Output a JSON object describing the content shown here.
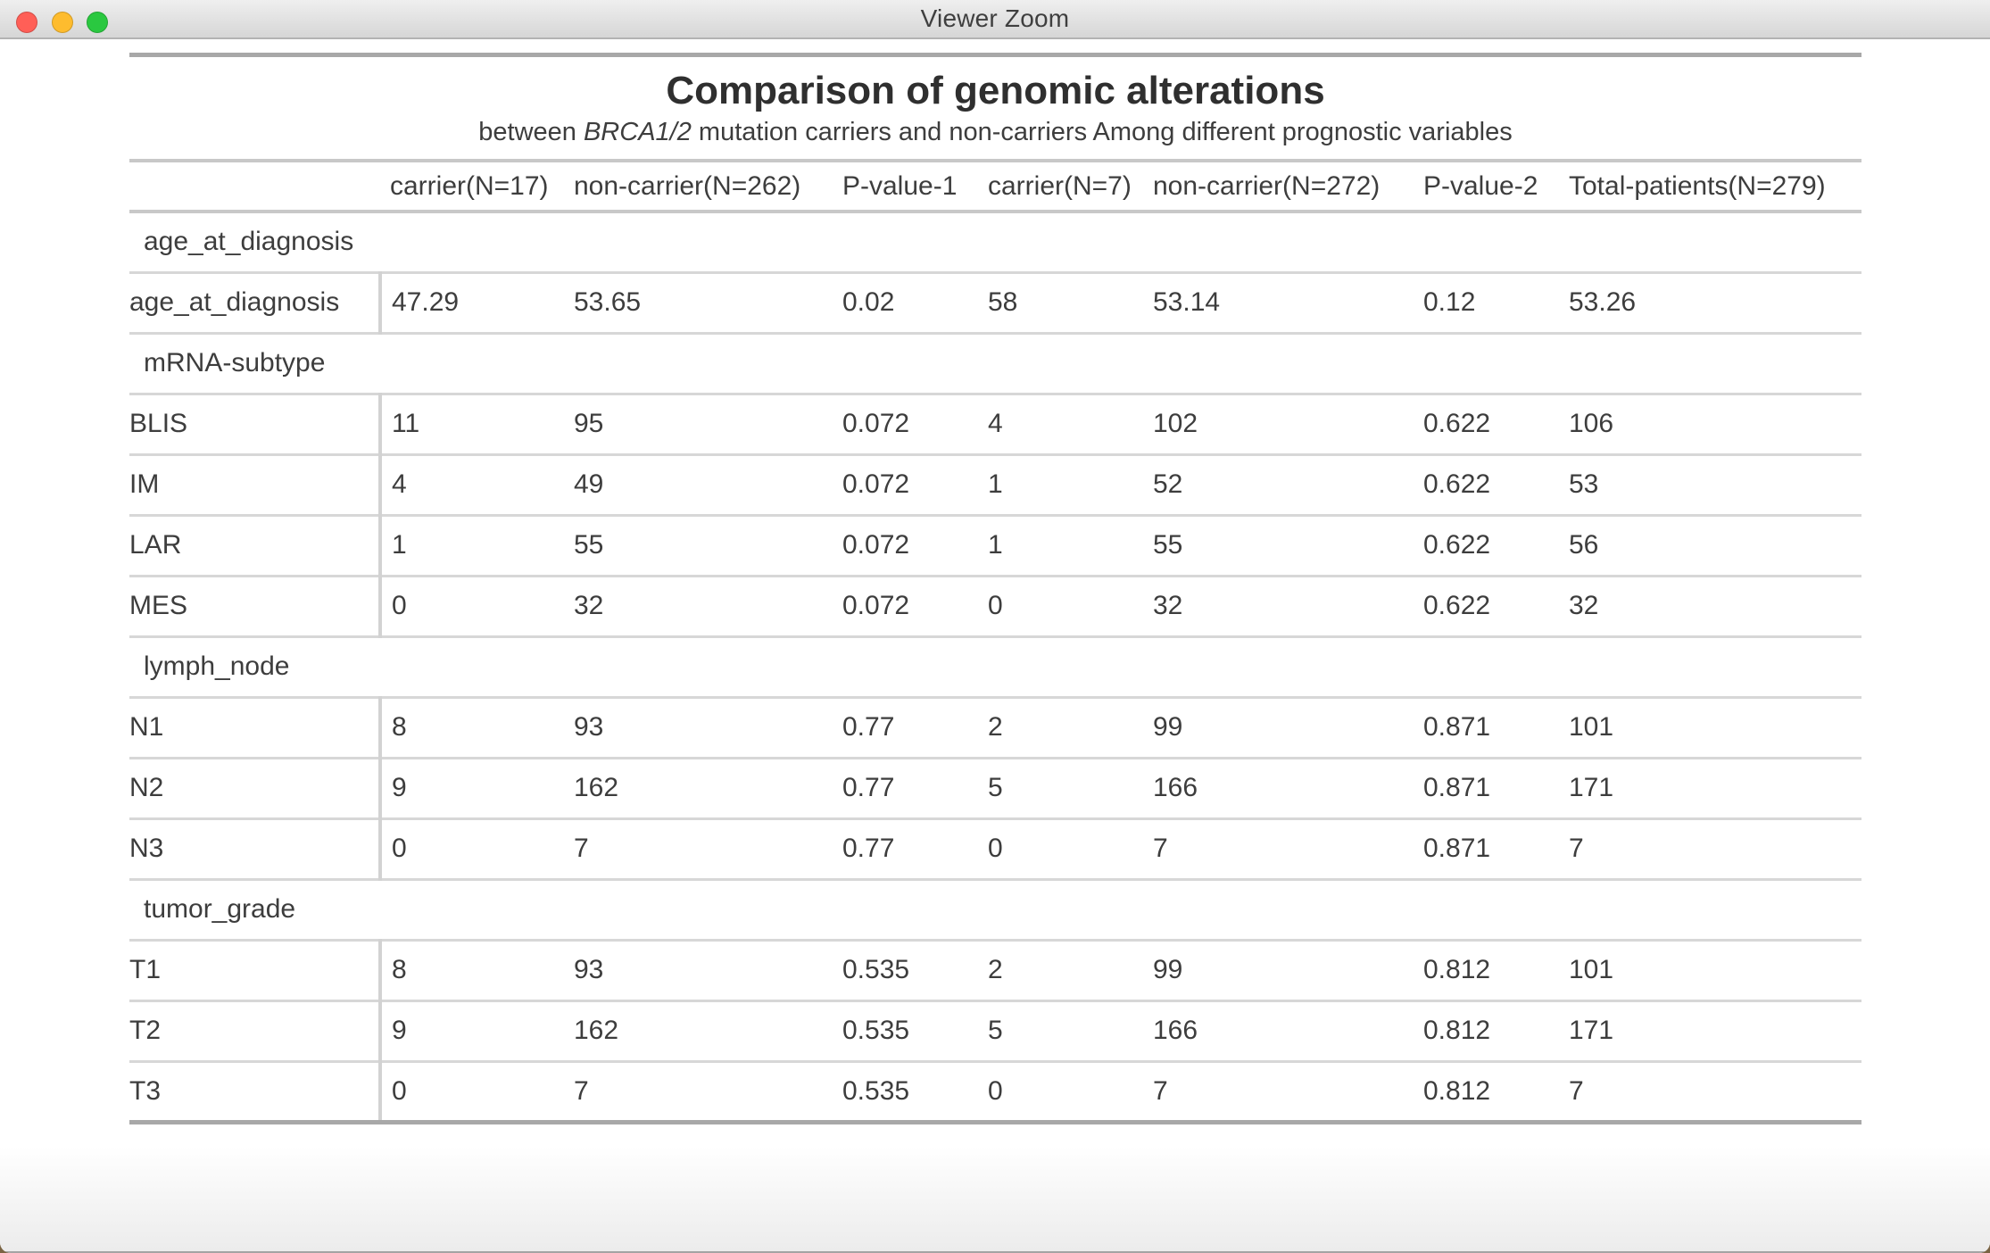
{
  "window": {
    "title": "Viewer Zoom",
    "traffic_lights": {
      "close_color": "#ff5f57",
      "minimize_color": "#febc2e",
      "zoom_color": "#2ac840"
    }
  },
  "table": {
    "title": "Comparison of genomic alterations",
    "subtitle": {
      "prefix": "between ",
      "italic": "BRCA1/2",
      "suffix": " mutation carriers and non-carriers Among different prognostic variables"
    },
    "columns": [
      "",
      "carrier(N=17)",
      "non-carrier(N=262)",
      "P-value-1",
      "carrier(N=7)",
      "non-carrier(N=272)",
      "P-value-2",
      "Total-patients(N=279)"
    ],
    "sections": [
      {
        "group": "age_at_diagnosis",
        "rows": [
          {
            "label": "age_at_diagnosis",
            "values": [
              "47.29",
              "53.65",
              "0.02",
              "58",
              "53.14",
              "0.12",
              "53.26"
            ]
          }
        ]
      },
      {
        "group": "mRNA-subtype",
        "rows": [
          {
            "label": "BLIS",
            "values": [
              "11",
              "95",
              "0.072",
              "4",
              "102",
              "0.622",
              "106"
            ]
          },
          {
            "label": "IM",
            "values": [
              "4",
              "49",
              "0.072",
              "1",
              "52",
              "0.622",
              "53"
            ]
          },
          {
            "label": "LAR",
            "values": [
              "1",
              "55",
              "0.072",
              "1",
              "55",
              "0.622",
              "56"
            ]
          },
          {
            "label": "MES",
            "values": [
              "0",
              "32",
              "0.072",
              "0",
              "32",
              "0.622",
              "32"
            ]
          }
        ]
      },
      {
        "group": "lymph_node",
        "rows": [
          {
            "label": "N1",
            "values": [
              "8",
              "93",
              "0.77",
              "2",
              "99",
              "0.871",
              "101"
            ]
          },
          {
            "label": "N2",
            "values": [
              "9",
              "162",
              "0.77",
              "5",
              "166",
              "0.871",
              "171"
            ]
          },
          {
            "label": "N3",
            "values": [
              "0",
              "7",
              "0.77",
              "0",
              "7",
              "0.871",
              "7"
            ]
          }
        ]
      },
      {
        "group": "tumor_grade",
        "rows": [
          {
            "label": "T1",
            "values": [
              "8",
              "93",
              "0.535",
              "2",
              "99",
              "0.812",
              "101"
            ]
          },
          {
            "label": "T2",
            "values": [
              "9",
              "162",
              "0.535",
              "5",
              "166",
              "0.812",
              "171"
            ]
          },
          {
            "label": "T3",
            "values": [
              "0",
              "7",
              "0.535",
              "0",
              "7",
              "0.812",
              "7"
            ]
          }
        ]
      }
    ]
  }
}
